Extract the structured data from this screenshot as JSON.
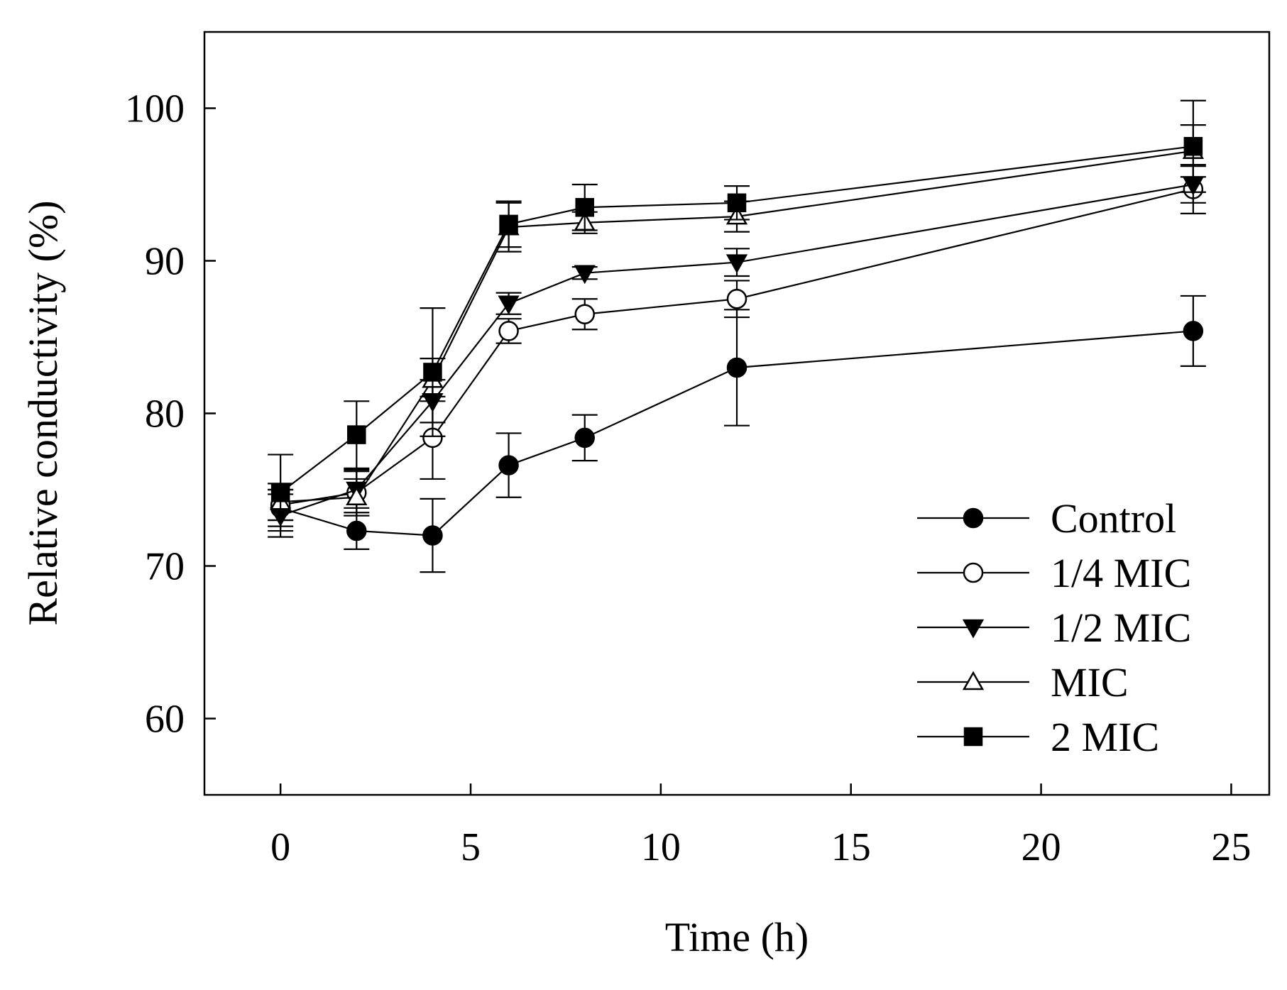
{
  "chart_data": {
    "type": "line",
    "title": "",
    "xlabel": "Time (h)",
    "ylabel": "Relative conductivity (%)",
    "xlim": [
      -2,
      26
    ],
    "ylim": [
      55,
      105
    ],
    "xticks": [
      0,
      5,
      10,
      15,
      20,
      25
    ],
    "yticks": [
      60,
      70,
      80,
      90,
      100
    ],
    "xtick_labels": [
      "0",
      "5",
      "10",
      "15",
      "20",
      "25"
    ],
    "ytick_labels": [
      "60",
      "70",
      "80",
      "90",
      "100"
    ],
    "grid": false,
    "legend_position": "bottom-right",
    "x": [
      0,
      2,
      4,
      6,
      8,
      12,
      24
    ],
    "series": [
      {
        "name": "Control",
        "marker": "circle-filled",
        "values": [
          73.8,
          72.3,
          72.0,
          76.6,
          78.4,
          83.0,
          85.4
        ],
        "errors": [
          1.2,
          1.2,
          2.4,
          2.1,
          1.5,
          3.8,
          2.3
        ]
      },
      {
        "name": "1/4 MIC",
        "marker": "circle-open",
        "values": [
          74.0,
          74.8,
          78.4,
          85.4,
          86.5,
          87.5,
          94.7
        ],
        "errors": [
          1.0,
          1.5,
          2.7,
          0.8,
          1.0,
          1.2,
          1.6
        ]
      },
      {
        "name": "1/2 MIC",
        "marker": "triangle-down-filled",
        "values": [
          73.3,
          75.0,
          80.8,
          87.2,
          89.2,
          89.9,
          95.0
        ],
        "errors": [
          1.4,
          1.2,
          1.4,
          0.7,
          0.4,
          0.9,
          1.2
        ]
      },
      {
        "name": "MIC",
        "marker": "triangle-up-open",
        "values": [
          74.2,
          74.5,
          82.2,
          92.2,
          92.5,
          92.9,
          97.2
        ],
        "errors": [
          1.2,
          1.2,
          1.4,
          1.6,
          0.7,
          1.0,
          1.7
        ]
      },
      {
        "name": "2 MIC",
        "marker": "square-filled",
        "values": [
          74.8,
          78.6,
          82.7,
          92.4,
          93.5,
          93.8,
          97.5
        ],
        "errors": [
          2.5,
          2.2,
          4.2,
          1.5,
          1.5,
          1.1,
          3.0
        ]
      }
    ]
  }
}
